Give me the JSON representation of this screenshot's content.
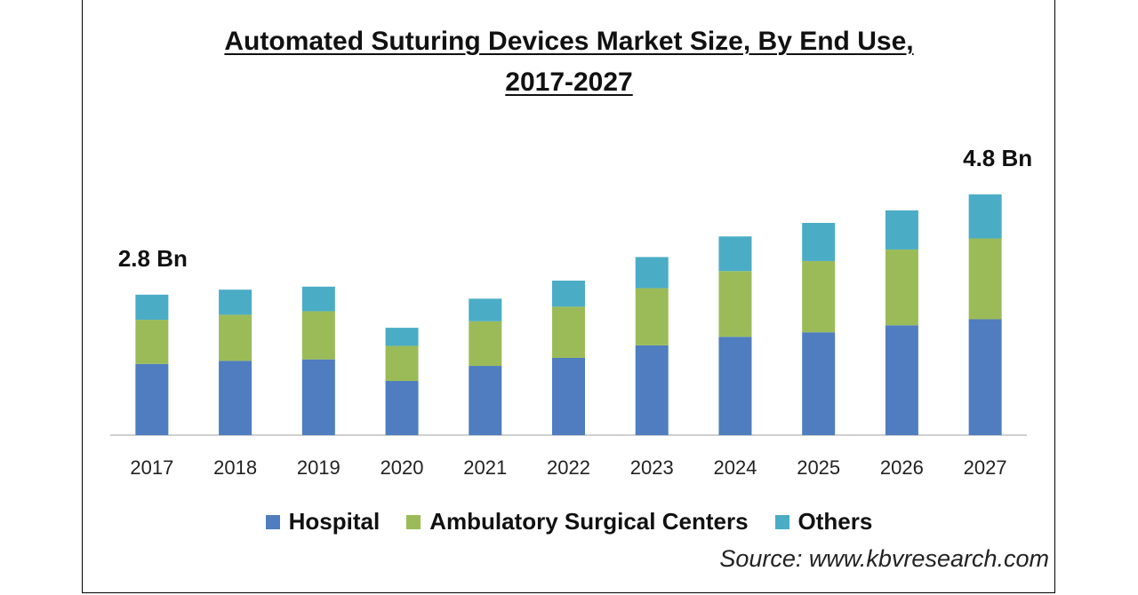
{
  "title": {
    "line1": "Automated Suturing Devices Market Size, By End Use,",
    "line2": "2017-2027"
  },
  "source": "Source: www.kbvresearch.com",
  "colors": {
    "hospital": "#4f7dbf",
    "ambulatory": "#9bbb59",
    "others": "#4bacc6"
  },
  "chart_data": {
    "type": "bar",
    "stacked": true,
    "title": "Automated Suturing Devices Market Size, By End Use, 2017-2027",
    "categories": [
      "2017",
      "2018",
      "2019",
      "2020",
      "2021",
      "2022",
      "2023",
      "2024",
      "2025",
      "2026",
      "2027"
    ],
    "series": [
      {
        "name": "Hospital",
        "values": [
          1.42,
          1.48,
          1.51,
          1.08,
          1.38,
          1.54,
          1.79,
          1.96,
          2.05,
          2.19,
          2.31
        ]
      },
      {
        "name": "Ambulatory Surgical Centers",
        "values": [
          0.88,
          0.92,
          0.96,
          0.7,
          0.89,
          1.02,
          1.14,
          1.31,
          1.42,
          1.51,
          1.61
        ]
      },
      {
        "name": "Others",
        "values": [
          0.5,
          0.5,
          0.49,
          0.36,
          0.45,
          0.52,
          0.62,
          0.69,
          0.76,
          0.78,
          0.88
        ]
      }
    ],
    "annotations": [
      {
        "category": "2017",
        "label": "2.8 Bn"
      },
      {
        "category": "2027",
        "label": "4.8 Bn"
      }
    ],
    "xlabel": "",
    "ylabel": "",
    "ylim": [
      0,
      5.5
    ],
    "legend_position": "bottom"
  }
}
